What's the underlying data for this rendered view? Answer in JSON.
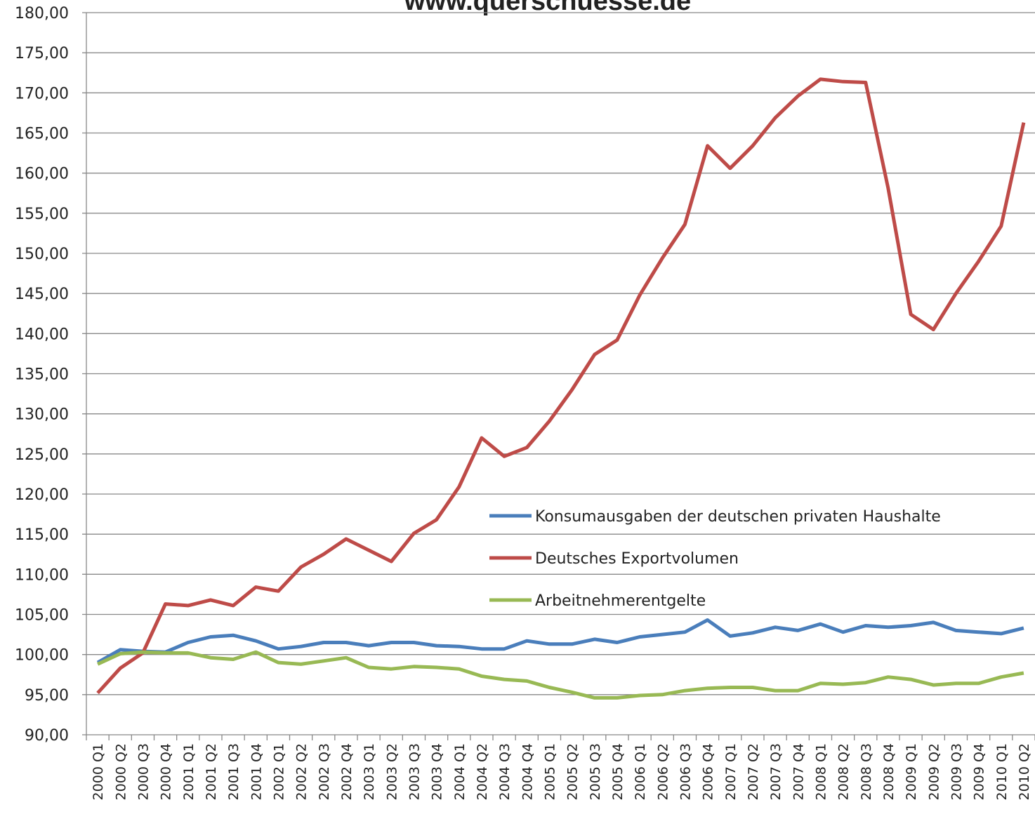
{
  "chart_data": {
    "type": "line",
    "title": "www.querschuesse.de",
    "categories": [
      "2000 Q1",
      "2000 Q2",
      "2000 Q3",
      "2000 Q4",
      "2001 Q1",
      "2001 Q2",
      "2001 Q3",
      "2001 Q4",
      "2002 Q1",
      "2002 Q2",
      "2002 Q3",
      "2002 Q4",
      "2003 Q1",
      "2003 Q2",
      "2003 Q3",
      "2003 Q4",
      "2004 Q1",
      "2004 Q2",
      "2004 Q3",
      "2004 Q4",
      "2005 Q1",
      "2005 Q2",
      "2005 Q3",
      "2005 Q4",
      "2006 Q1",
      "2006 Q2",
      "2006 Q3",
      "2006 Q4",
      "2007 Q1",
      "2007 Q2",
      "2007 Q3",
      "2007 Q4",
      "2008 Q1",
      "2008 Q2",
      "2008 Q3",
      "2008 Q4",
      "2009 Q1",
      "2009 Q2",
      "2009 Q3",
      "2009 Q4",
      "2010 Q1",
      "2010 Q2"
    ],
    "series": [
      {
        "name": "Konsumausgaben der deutschen privaten Haushalte",
        "color": "#4a7ebb",
        "values": [
          99.0,
          100.6,
          100.4,
          100.3,
          101.5,
          102.2,
          102.4,
          101.7,
          100.7,
          101.0,
          101.5,
          101.5,
          101.1,
          101.5,
          101.5,
          101.1,
          101.0,
          100.7,
          100.7,
          101.7,
          101.3,
          101.3,
          101.9,
          101.5,
          102.2,
          102.5,
          102.8,
          104.3,
          102.3,
          102.7,
          103.4,
          103.0,
          103.8,
          102.8,
          103.6,
          103.4,
          103.6,
          104.0,
          103.0,
          102.8,
          102.6,
          103.3
        ]
      },
      {
        "name": "Deutsches Exportvolumen",
        "color": "#be4b48",
        "values": [
          95.2,
          98.3,
          100.2,
          106.3,
          106.1,
          106.8,
          106.1,
          108.4,
          107.9,
          110.9,
          112.5,
          114.4,
          113.0,
          111.6,
          115.1,
          116.8,
          120.9,
          127.0,
          124.7,
          125.8,
          129.1,
          133.0,
          137.4,
          139.2,
          144.8,
          149.4,
          153.6,
          163.4,
          160.6,
          163.4,
          166.9,
          169.6,
          171.7,
          171.4,
          171.3,
          158.1,
          142.4,
          140.5,
          145.0,
          149.0,
          153.4,
          166.3
        ]
      },
      {
        "name": "Arbeitnehmerentgelte",
        "color": "#98b954",
        "values": [
          98.8,
          100.1,
          100.3,
          100.2,
          100.2,
          99.6,
          99.4,
          100.3,
          99.0,
          98.8,
          99.2,
          99.6,
          98.4,
          98.2,
          98.5,
          98.4,
          98.2,
          97.3,
          96.9,
          96.7,
          95.9,
          95.3,
          94.6,
          94.6,
          94.9,
          95.0,
          95.5,
          95.8,
          95.9,
          95.9,
          95.5,
          95.5,
          96.4,
          96.3,
          96.5,
          97.2,
          96.9,
          96.2,
          96.4,
          96.4,
          97.2,
          97.7
        ]
      }
    ],
    "ylim": [
      90,
      180
    ],
    "yticks": [
      {
        "value": 90,
        "label": "90,00"
      },
      {
        "value": 95,
        "label": "95,00"
      },
      {
        "value": 100,
        "label": "100,00"
      },
      {
        "value": 105,
        "label": "105,00"
      },
      {
        "value": 110,
        "label": "110,00"
      },
      {
        "value": 115,
        "label": "115,00"
      },
      {
        "value": 120,
        "label": "120,00"
      },
      {
        "value": 125,
        "label": "125,00"
      },
      {
        "value": 130,
        "label": "130,00"
      },
      {
        "value": 135,
        "label": "135,00"
      },
      {
        "value": 140,
        "label": "140,00"
      },
      {
        "value": 145,
        "label": "145,00"
      },
      {
        "value": 150,
        "label": "150,00"
      },
      {
        "value": 155,
        "label": "155,00"
      },
      {
        "value": 160,
        "label": "160,00"
      },
      {
        "value": 165,
        "label": "165,00"
      },
      {
        "value": 170,
        "label": "170,00"
      },
      {
        "value": 175,
        "label": "175,00"
      },
      {
        "value": 180,
        "label": "180,00"
      }
    ],
    "grid": true
  }
}
